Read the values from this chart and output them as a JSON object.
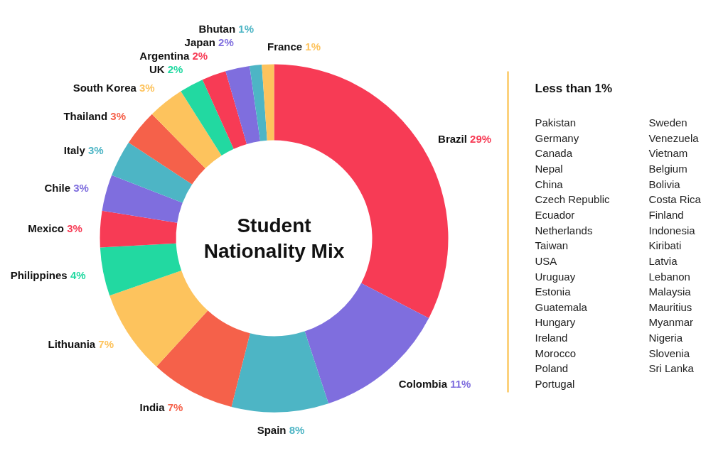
{
  "chart_data": {
    "type": "donut",
    "title": "Student Nationality Mix",
    "categories": [
      "Brazil",
      "Colombia",
      "Spain",
      "India",
      "Lithuania",
      "Philippines",
      "Mexico",
      "Chile",
      "Italy",
      "Thailand",
      "South Korea",
      "UK",
      "Argentina",
      "Japan",
      "Bhutan",
      "France"
    ],
    "values": [
      29,
      11,
      8,
      7,
      7,
      4,
      3,
      3,
      3,
      3,
      3,
      2,
      2,
      2,
      1,
      1
    ],
    "colors": [
      "#f73b55",
      "#7f6ede",
      "#4db5c5",
      "#f5614a",
      "#fdc35d",
      "#22d9a1",
      "#f73b55",
      "#7f6ede",
      "#4db5c5",
      "#f5614a",
      "#fdc35d",
      "#22d9a1",
      "#f73b55",
      "#7f6ede",
      "#4db5c5",
      "#fdc35d"
    ],
    "value_labels": [
      "29%",
      "11%",
      "8%",
      "7%",
      "7%",
      "4%",
      "3%",
      "3%",
      "3%",
      "3%",
      "3%",
      "2%",
      "2%",
      "2%",
      "1%",
      "1%"
    ],
    "annotations": [
      "Less than 1%",
      "Pakistan",
      "Germany",
      "Canada",
      "Nepal",
      "China",
      "Czech Republic",
      "Ecuador",
      "Netherlands",
      "Taiwan",
      "USA",
      "Uruguay",
      "Estonia",
      "Guatemala",
      "Hungary",
      "Ireland",
      "Morocco",
      "Poland",
      "Portugal",
      "Sweden",
      "Venezuela",
      "Vietnam",
      "Belgium",
      "Bolivia",
      "Costa Rica",
      "Finland",
      "Indonesia",
      "Kiribati",
      "Latvia",
      "Lebanon",
      "Malaysia",
      "Mauritius",
      "Myanmar",
      "Nigeria",
      "Slovenia",
      "Sri Lanka"
    ]
  }
}
